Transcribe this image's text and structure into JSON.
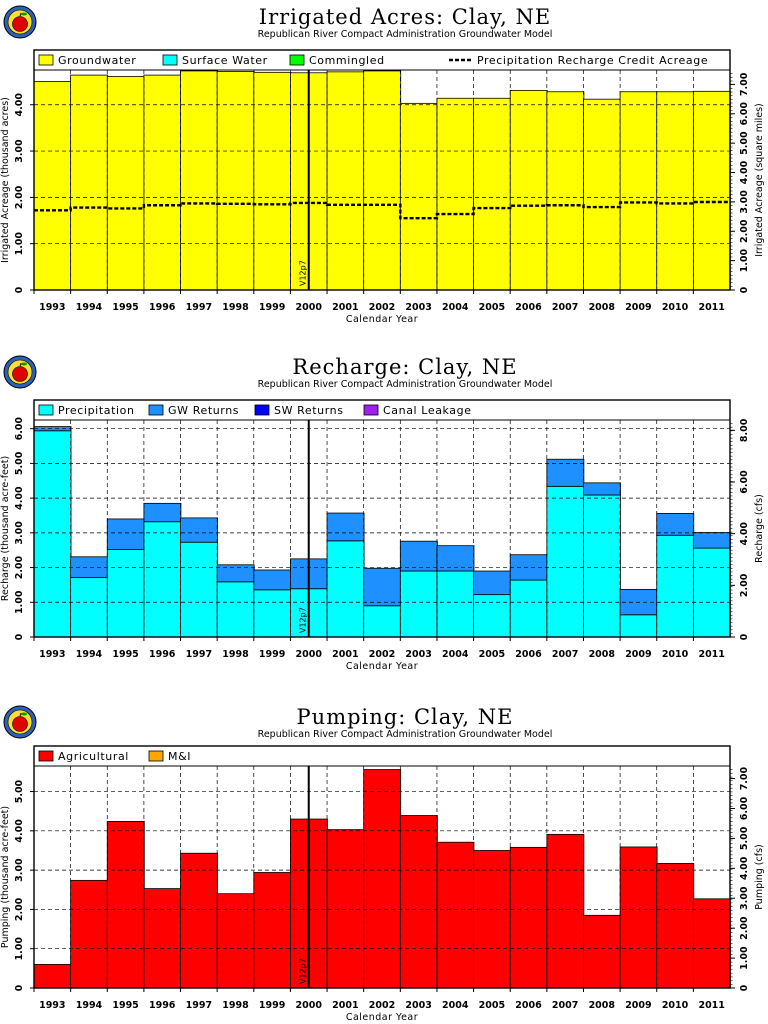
{
  "chart_data": [
    {
      "type": "area",
      "title": "Irrigated Acres: Clay, NE",
      "subtitle": "Republican River Compact Administration Groundwater Model",
      "xlabel": "Calendar Year",
      "ylabel": "Irrigated Acreage (thousand acres)",
      "ylabel_right": "Irrigated Acreage (square miles)",
      "categories": [
        "1993",
        "1994",
        "1995",
        "1996",
        "1997",
        "1998",
        "1999",
        "2000",
        "2001",
        "2002",
        "2003",
        "2004",
        "2005",
        "2006",
        "2007",
        "2008",
        "2009",
        "2010",
        "2011"
      ],
      "ylim": [
        0,
        4.75
      ],
      "yticks": [
        "1.00",
        "2.00",
        "3.00",
        "4.00"
      ],
      "yticks_right": [
        "1.00",
        "2.00",
        "3.00",
        "4.00",
        "5.00",
        "6.00",
        "7.00"
      ],
      "marker_label": "V12p7",
      "marker_x": 2000.5,
      "series": [
        {
          "name": "Groundwater",
          "color": "#ffff00",
          "values": [
            4.5,
            4.64,
            4.61,
            4.64,
            4.73,
            4.72,
            4.7,
            4.69,
            4.71,
            4.73,
            4.03,
            4.14,
            4.14,
            4.31,
            4.28,
            4.12,
            4.28,
            4.28,
            4.29
          ]
        },
        {
          "name": "Surface Water",
          "color": "#00ffff",
          "values": [
            0,
            0,
            0,
            0,
            0,
            0,
            0,
            0,
            0,
            0,
            0,
            0,
            0,
            0,
            0,
            0,
            0,
            0,
            0
          ]
        },
        {
          "name": "Commingled",
          "color": "#00ff00",
          "values": [
            0,
            0,
            0,
            0,
            0,
            0,
            0,
            0,
            0,
            0,
            0,
            0,
            0,
            0,
            0,
            0,
            0,
            0,
            0
          ]
        }
      ],
      "line": {
        "name": "Precipitation Recharge Credit Acreage",
        "values": [
          1.72,
          1.78,
          1.76,
          1.83,
          1.87,
          1.86,
          1.85,
          1.88,
          1.84,
          1.84,
          1.55,
          1.64,
          1.77,
          1.82,
          1.83,
          1.79,
          1.89,
          1.87,
          1.9
        ]
      }
    },
    {
      "type": "area",
      "title": "Recharge: Clay, NE",
      "subtitle": "Republican River Compact Administration Groundwater Model",
      "xlabel": "Calendar Year",
      "ylabel": "Recharge (thousand acre-feet)",
      "ylabel_right": "Recharge (cfs)",
      "categories": [
        "1993",
        "1994",
        "1995",
        "1996",
        "1997",
        "1998",
        "1999",
        "2000",
        "2001",
        "2002",
        "2003",
        "2004",
        "2005",
        "2006",
        "2007",
        "2008",
        "2009",
        "2010",
        "2011"
      ],
      "ylim": [
        0,
        6.25
      ],
      "yticks": [
        "1.00",
        "2.00",
        "3.00",
        "4.00",
        "5.00",
        "6.00"
      ],
      "yticks_right": [
        "2.00",
        "4.00",
        "6.00",
        "8.00"
      ],
      "marker_label": "V12p7",
      "marker_x": 2000.5,
      "series": [
        {
          "name": "Precipitation",
          "color": "#00ffff",
          "values": [
            5.94,
            1.71,
            2.52,
            3.32,
            2.73,
            1.59,
            1.36,
            1.39,
            2.77,
            0.9,
            1.9,
            1.9,
            1.22,
            1.64,
            4.34,
            4.09,
            0.64,
            2.93,
            2.56
          ]
        },
        {
          "name": "GW Returns",
          "color": "#1e90ff",
          "values": [
            0.12,
            0.6,
            0.88,
            0.53,
            0.7,
            0.49,
            0.57,
            0.86,
            0.8,
            1.08,
            0.86,
            0.73,
            0.68,
            0.73,
            0.78,
            0.35,
            0.73,
            0.63,
            0.45
          ]
        },
        {
          "name": "SW Returns",
          "color": "#0000ff",
          "values": [
            0,
            0,
            0,
            0,
            0,
            0,
            0,
            0,
            0,
            0,
            0,
            0,
            0,
            0,
            0,
            0,
            0,
            0,
            0
          ]
        },
        {
          "name": "Canal Leakage",
          "color": "#a020f0",
          "values": [
            0,
            0,
            0,
            0,
            0,
            0,
            0,
            0,
            0,
            0,
            0,
            0,
            0,
            0,
            0,
            0,
            0,
            0,
            0
          ]
        }
      ]
    },
    {
      "type": "area",
      "title": "Pumping: Clay, NE",
      "subtitle": "Republican River Compact Administration Groundwater Model",
      "xlabel": "Calendar Year",
      "ylabel": "Pumping (thousand acre-feet)",
      "ylabel_right": "Pumping (cfs)",
      "categories": [
        "1993",
        "1994",
        "1995",
        "1996",
        "1997",
        "1998",
        "1999",
        "2000",
        "2001",
        "2002",
        "2003",
        "2004",
        "2005",
        "2006",
        "2007",
        "2008",
        "2009",
        "2010",
        "2011"
      ],
      "ylim": [
        0,
        5.65
      ],
      "yticks": [
        "1.00",
        "2.00",
        "3.00",
        "4.00",
        "5.00"
      ],
      "yticks_right": [
        "1.00",
        "2.00",
        "3.00",
        "4.00",
        "5.00",
        "6.00",
        "7.00"
      ],
      "marker_label": "V12p7",
      "marker_x": 2000.5,
      "series": [
        {
          "name": "Agricultural",
          "color": "#ff0000",
          "values": [
            0.6,
            2.74,
            4.24,
            2.53,
            3.43,
            2.4,
            2.94,
            4.3,
            4.03,
            5.56,
            4.39,
            3.71,
            3.5,
            3.58,
            3.91,
            1.85,
            3.59,
            3.17,
            2.27
          ]
        },
        {
          "name": "M&I",
          "color": "#ffa500",
          "values": [
            0,
            0,
            0,
            0,
            0,
            0,
            0,
            0,
            0,
            0,
            0,
            0,
            0,
            0,
            0,
            0,
            0,
            0,
            0
          ]
        }
      ]
    }
  ]
}
